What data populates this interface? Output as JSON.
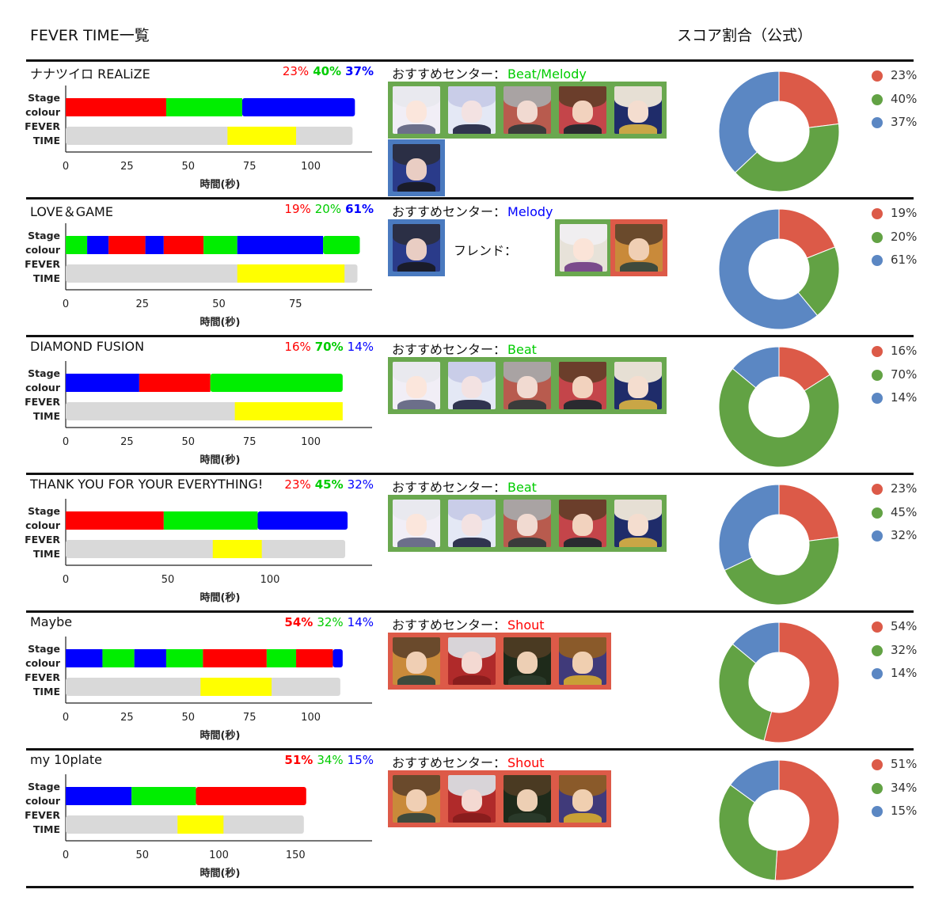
{
  "header": {
    "title": "FEVER TIME一覧",
    "score_title": "スコア割合（公式）"
  },
  "colors": {
    "red": "#ff0000",
    "green": "#00ee00",
    "blue": "#0000ff",
    "yellow": "#ffff00",
    "fever_bg": "#d9d9d9",
    "donut_red": "#dc5a48",
    "donut_green": "#62a244",
    "donut_blue": "#5b87c3",
    "frame_green": "#6aa84f",
    "frame_blue": "#4a7abf",
    "frame_red": "#dd5a48"
  },
  "axis_labels": {
    "stage": "Stage",
    "colour": "colour",
    "fever": "FEVER",
    "time": "TIME",
    "xlabel": "時間(秒)"
  },
  "centers_prefix": "おすすめセンター：",
  "friend_label": "フレンド：",
  "songs": [
    {
      "title": "ナナツイロ REALiZE",
      "pcts": [
        {
          "text": "23%",
          "color": "#ff0000",
          "bold": false
        },
        {
          "text": "40%",
          "color": "#00cc00",
          "bold": true
        },
        {
          "text": "37%",
          "color": "#0000ff",
          "bold": true
        }
      ],
      "center": {
        "text": "Beat/Melody",
        "color": "#00cc00"
      },
      "cards_layout": "beat_melody",
      "legend": [
        "23%",
        "40%",
        "37%"
      ]
    },
    {
      "title": "LOVE＆GAME",
      "pcts": [
        {
          "text": "19%",
          "color": "#ff0000",
          "bold": false
        },
        {
          "text": "20%",
          "color": "#00cc00",
          "bold": false
        },
        {
          "text": "61%",
          "color": "#0000ff",
          "bold": true
        }
      ],
      "center": {
        "text": "Melody",
        "color": "#0000ff"
      },
      "cards_layout": "melody_friend",
      "legend": [
        "19%",
        "20%",
        "61%"
      ]
    },
    {
      "title": "DIAMOND FUSION",
      "pcts": [
        {
          "text": "16%",
          "color": "#ff0000",
          "bold": false
        },
        {
          "text": "70%",
          "color": "#00cc00",
          "bold": true
        },
        {
          "text": "14%",
          "color": "#0000ff",
          "bold": false
        }
      ],
      "center": {
        "text": "Beat",
        "color": "#00cc00"
      },
      "cards_layout": "beat",
      "legend": [
        "16%",
        "70%",
        "14%"
      ]
    },
    {
      "title": "THANK YOU FOR YOUR EVERYTHING!",
      "pcts": [
        {
          "text": "23%",
          "color": "#ff0000",
          "bold": false
        },
        {
          "text": "45%",
          "color": "#00cc00",
          "bold": true
        },
        {
          "text": "32%",
          "color": "#0000ff",
          "bold": false
        }
      ],
      "center": {
        "text": "Beat",
        "color": "#00cc00"
      },
      "cards_layout": "beat",
      "legend": [
        "23%",
        "45%",
        "32%"
      ]
    },
    {
      "title": "Maybe",
      "pcts": [
        {
          "text": "54%",
          "color": "#ff0000",
          "bold": true
        },
        {
          "text": "32%",
          "color": "#00cc00",
          "bold": false
        },
        {
          "text": "14%",
          "color": "#0000ff",
          "bold": false
        }
      ],
      "center": {
        "text": "Shout",
        "color": "#ff0000"
      },
      "cards_layout": "shout",
      "legend": [
        "54%",
        "32%",
        "14%"
      ]
    },
    {
      "title": "my 10plate",
      "pcts": [
        {
          "text": "51%",
          "color": "#ff0000",
          "bold": true
        },
        {
          "text": "34%",
          "color": "#00cc00",
          "bold": false
        },
        {
          "text": "15%",
          "color": "#0000ff",
          "bold": false
        }
      ],
      "center": {
        "text": "Shout",
        "color": "#ff0000"
      },
      "cards_layout": "shout",
      "legend": [
        "51%",
        "34%",
        "15%"
      ]
    }
  ],
  "chart_data": [
    {
      "type": "bar",
      "title": "ナナツイロ REALiZE",
      "xlabel": "時間(秒)",
      "xlim": [
        0,
        125
      ],
      "xticks": [
        0,
        25,
        50,
        75,
        100
      ],
      "stage_colour": [
        {
          "start": 0,
          "end": 41,
          "color": "red"
        },
        {
          "start": 41,
          "end": 72,
          "color": "green"
        },
        {
          "start": 72,
          "end": 118,
          "color": "blue"
        }
      ],
      "fever_time": {
        "start": 66,
        "end": 94
      },
      "song_length": 118,
      "score_share": [
        {
          "name": "red",
          "value": 23
        },
        {
          "name": "green",
          "value": 40
        },
        {
          "name": "blue",
          "value": 37
        }
      ]
    },
    {
      "type": "bar",
      "title": "LOVE＆GAME",
      "xlabel": "時間(秒)",
      "xlim": [
        0,
        100
      ],
      "xticks": [
        0,
        25,
        50,
        75
      ],
      "stage_colour": [
        {
          "start": 0,
          "end": 7,
          "color": "green"
        },
        {
          "start": 7,
          "end": 14,
          "color": "blue"
        },
        {
          "start": 14,
          "end": 26,
          "color": "red"
        },
        {
          "start": 26,
          "end": 32,
          "color": "blue"
        },
        {
          "start": 32,
          "end": 45,
          "color": "red"
        },
        {
          "start": 45,
          "end": 56,
          "color": "green"
        },
        {
          "start": 56,
          "end": 84,
          "color": "blue"
        },
        {
          "start": 84,
          "end": 96,
          "color": "green"
        }
      ],
      "fever_time": {
        "start": 56,
        "end": 91
      },
      "song_length": 96,
      "score_share": [
        {
          "name": "red",
          "value": 19
        },
        {
          "name": "green",
          "value": 20
        },
        {
          "name": "blue",
          "value": 61
        }
      ]
    },
    {
      "type": "bar",
      "title": "DIAMOND FUSION",
      "xlabel": "時間(秒)",
      "xlim": [
        0,
        125
      ],
      "xticks": [
        0,
        25,
        50,
        75,
        100
      ],
      "stage_colour": [
        {
          "start": 0,
          "end": 30,
          "color": "blue"
        },
        {
          "start": 30,
          "end": 59,
          "color": "red"
        },
        {
          "start": 59,
          "end": 113,
          "color": "green"
        }
      ],
      "fever_time": {
        "start": 69,
        "end": 113
      },
      "song_length": 113,
      "score_share": [
        {
          "name": "red",
          "value": 16
        },
        {
          "name": "green",
          "value": 70
        },
        {
          "name": "blue",
          "value": 14
        }
      ]
    },
    {
      "type": "bar",
      "title": "THANK YOU FOR YOUR EVERYTHING!",
      "xlabel": "時間(秒)",
      "xlim": [
        0,
        150
      ],
      "xticks": [
        0,
        50,
        100
      ],
      "stage_colour": [
        {
          "start": 0,
          "end": 48,
          "color": "red"
        },
        {
          "start": 48,
          "end": 94,
          "color": "green"
        },
        {
          "start": 94,
          "end": 138,
          "color": "blue"
        }
      ],
      "fever_time": {
        "start": 72,
        "end": 96
      },
      "song_length": 138,
      "score_share": [
        {
          "name": "red",
          "value": 23
        },
        {
          "name": "green",
          "value": 45
        },
        {
          "name": "blue",
          "value": 32
        }
      ]
    },
    {
      "type": "bar",
      "title": "Maybe",
      "xlabel": "時間(秒)",
      "xlim": [
        0,
        125
      ],
      "xticks": [
        0,
        25,
        50,
        75,
        100
      ],
      "stage_colour": [
        {
          "start": 0,
          "end": 15,
          "color": "blue"
        },
        {
          "start": 15,
          "end": 28,
          "color": "green"
        },
        {
          "start": 28,
          "end": 41,
          "color": "blue"
        },
        {
          "start": 41,
          "end": 56,
          "color": "green"
        },
        {
          "start": 56,
          "end": 82,
          "color": "red"
        },
        {
          "start": 82,
          "end": 94,
          "color": "green"
        },
        {
          "start": 94,
          "end": 109,
          "color": "red"
        },
        {
          "start": 109,
          "end": 113,
          "color": "blue"
        }
      ],
      "fever_time": {
        "start": 55,
        "end": 84
      },
      "song_length": 113,
      "score_share": [
        {
          "name": "red",
          "value": 54
        },
        {
          "name": "green",
          "value": 32
        },
        {
          "name": "blue",
          "value": 14
        }
      ]
    },
    {
      "type": "bar",
      "title": "my 10plate",
      "xlabel": "時間(秒)",
      "xlim": [
        0,
        200
      ],
      "xticks": [
        0,
        50,
        100,
        150
      ],
      "stage_colour": [
        {
          "start": 0,
          "end": 43,
          "color": "blue"
        },
        {
          "start": 43,
          "end": 85,
          "color": "green"
        },
        {
          "start": 85,
          "end": 157,
          "color": "red"
        }
      ],
      "fever_time": {
        "start": 73,
        "end": 103
      },
      "song_length": 157,
      "score_share": [
        {
          "name": "red",
          "value": 51
        },
        {
          "name": "green",
          "value": 34
        },
        {
          "name": "blue",
          "value": 15
        }
      ]
    }
  ]
}
